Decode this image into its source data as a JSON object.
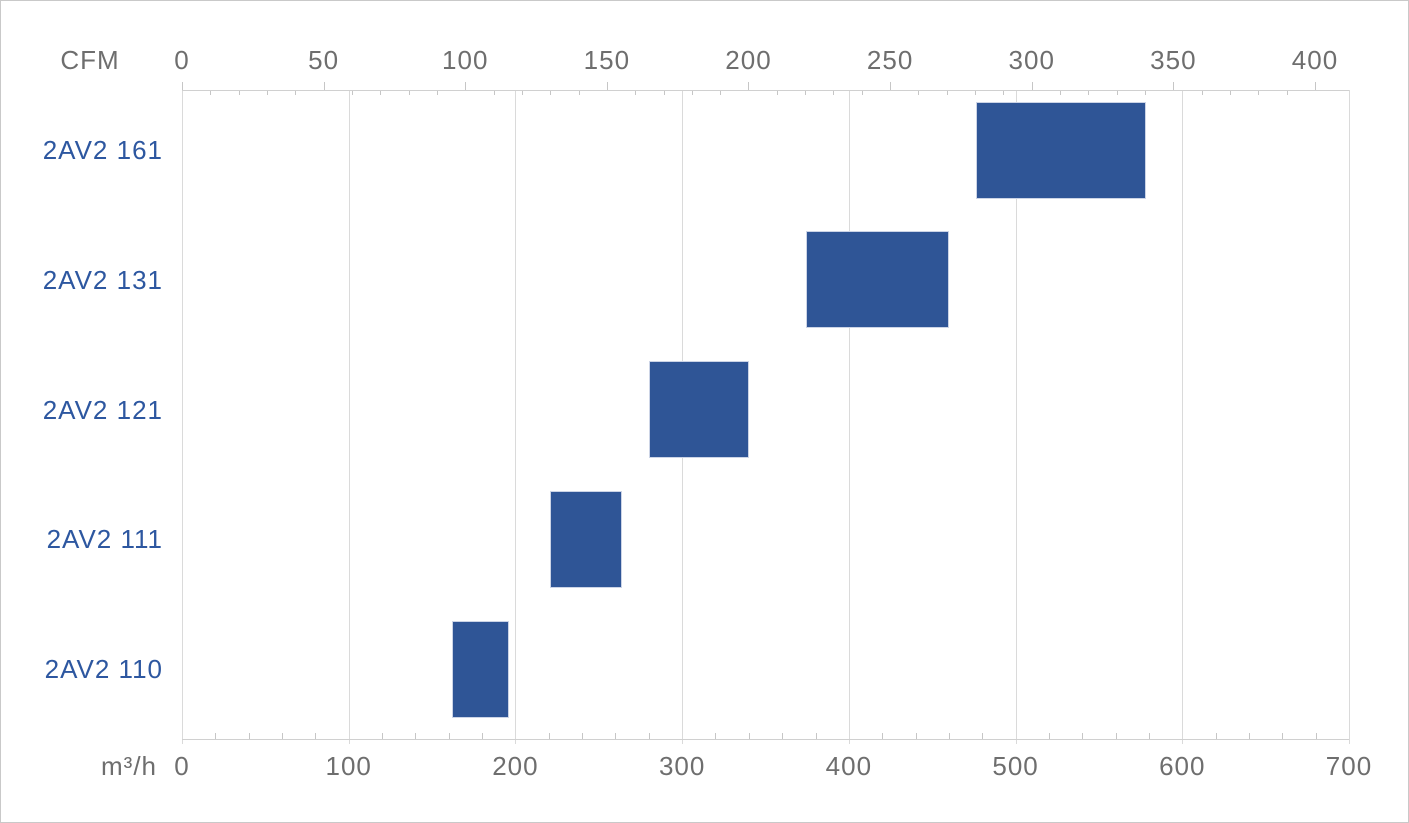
{
  "chart_data": {
    "type": "bar",
    "subtype": "horizontal-range",
    "title": "",
    "categories": [
      "2AV2 161",
      "2AV2 131",
      "2AV2 121",
      "2AV2 111",
      "2AV2 110"
    ],
    "series": [
      {
        "name": "flow-range-m3h",
        "unit": "m³/h",
        "ranges": [
          [
            476,
            578
          ],
          [
            374,
            460
          ],
          [
            280,
            340
          ],
          [
            221,
            264
          ],
          [
            162,
            196
          ]
        ]
      },
      {
        "name": "flow-range-cfm",
        "unit": "CFM",
        "ranges": [
          [
            280,
            340
          ],
          [
            220,
            270
          ],
          [
            165,
            200
          ],
          [
            130,
            155
          ],
          [
            95,
            115
          ]
        ]
      }
    ],
    "axes": {
      "top": {
        "label": "CFM",
        "min": 0,
        "max": 400,
        "major_step": 50,
        "minor_step": 10,
        "ticks": [
          0,
          50,
          100,
          150,
          200,
          250,
          300,
          350,
          400
        ],
        "m3h_per_cfm": 1.699
      },
      "bottom": {
        "label": "m³/h",
        "min": 0,
        "max": 700,
        "major_step": 100,
        "minor_step": 20,
        "ticks": [
          0,
          100,
          200,
          300,
          400,
          500,
          600,
          700
        ]
      }
    },
    "grid": "vertical-lines-at-bottom-major-ticks",
    "legend": null,
    "colors": {
      "bar": "#2F5596",
      "bar_border": "#ccd4e6",
      "category_label": "#2D57A0",
      "tick_label": "#6E6E6E",
      "gridline": "#DADADA",
      "axis_line": "#D0D0D0",
      "background": "#FFFFFF",
      "frame_border": "#C9C9C9"
    }
  }
}
